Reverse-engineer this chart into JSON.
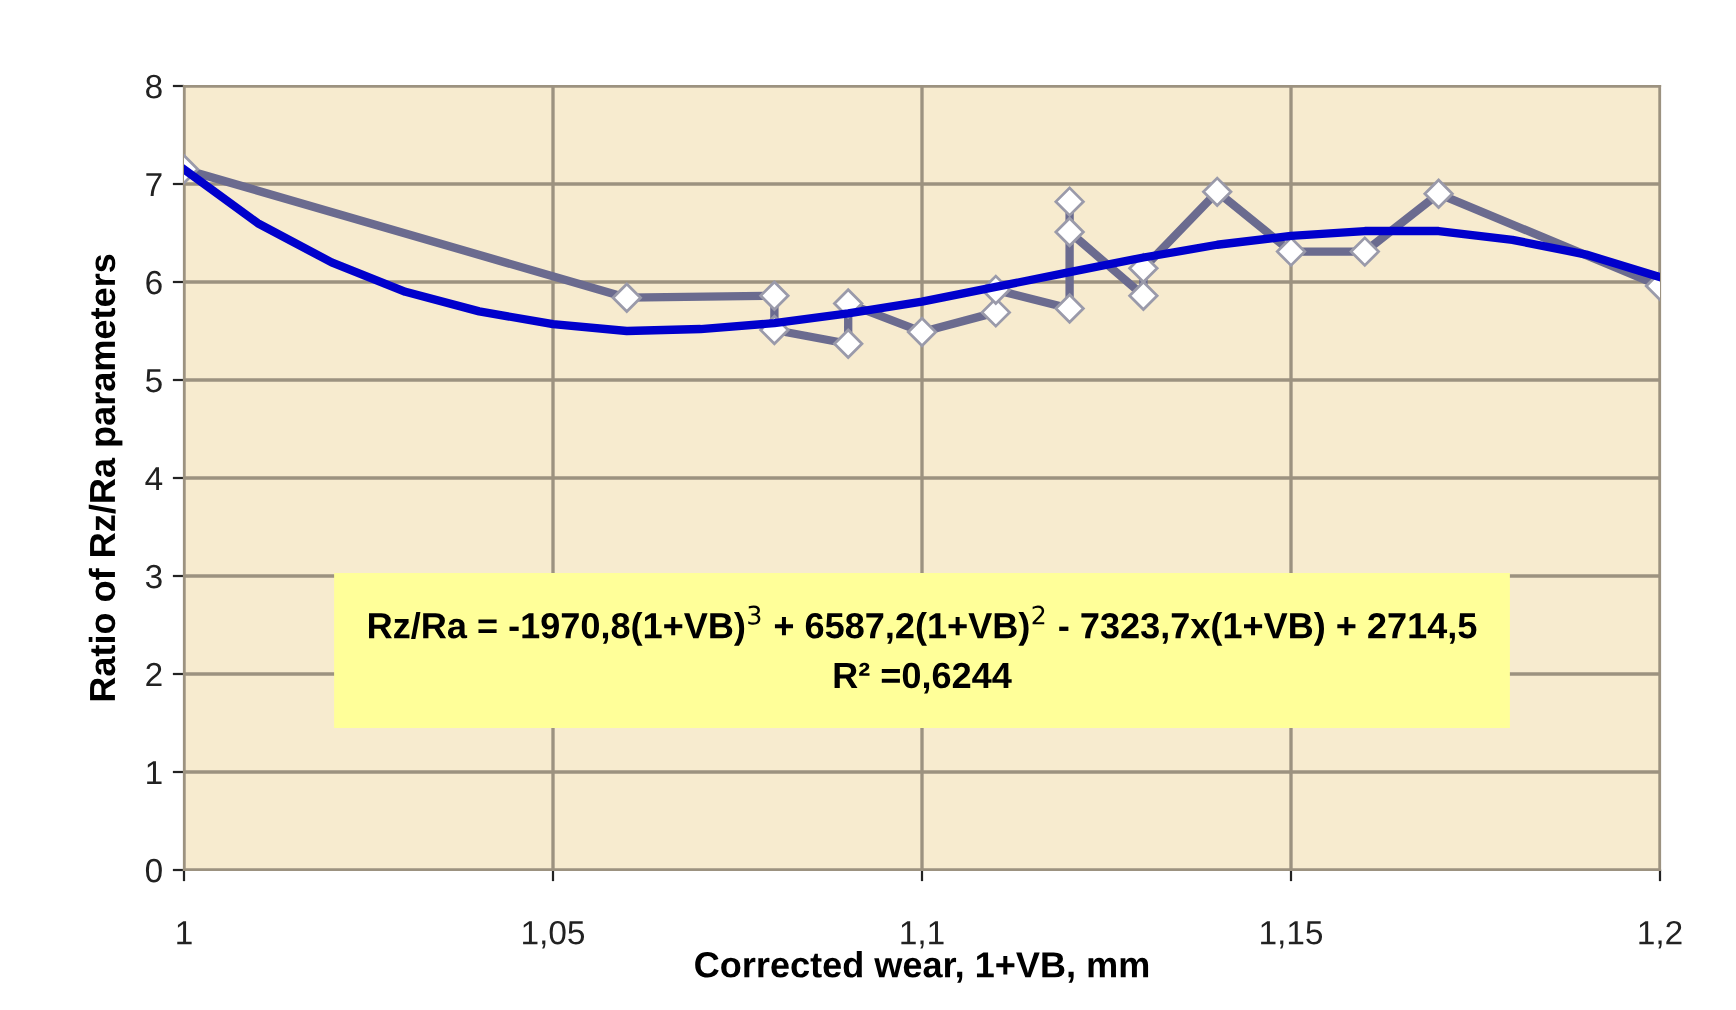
{
  "chart_data": {
    "type": "line",
    "xlabel": "Corrected wear, 1+VB, mm",
    "ylabel": "Ratio of Rz/Ra parameters",
    "series": [
      {
        "color": "#6b6b8f",
        "marker": "diamond",
        "x": [
          1,
          1.06,
          1.08,
          1.08,
          1.09,
          1.09,
          1.1,
          1.11,
          1.11,
          1.12,
          1.12,
          1.12,
          1.13,
          1.13,
          1.14,
          1.15,
          1.16,
          1.17,
          1.2
        ],
        "values": [
          7.15,
          5.84,
          5.86,
          5.51,
          5.37,
          5.78,
          5.49,
          5.69,
          5.92,
          5.73,
          6.82,
          6.51,
          5.86,
          6.14,
          6.92,
          6.31,
          6.31,
          6.9,
          5.96
        ]
      },
      {
        "color": "#0000cc",
        "marker": "none",
        "x": [
          1,
          1.01,
          1.02,
          1.03,
          1.04,
          1.05,
          1.06,
          1.07,
          1.08,
          1.09,
          1.1,
          1.11,
          1.12,
          1.13,
          1.14,
          1.15,
          1.16,
          1.17,
          1.18,
          1.19,
          1.2
        ],
        "values": [
          7.15,
          6.6,
          6.2,
          5.9,
          5.7,
          5.57,
          5.5,
          5.52,
          5.58,
          5.68,
          5.8,
          5.95,
          6.1,
          6.25,
          6.38,
          6.47,
          6.52,
          6.52,
          6.43,
          6.28,
          6.05
        ]
      }
    ],
    "xlim": [
      1,
      1.2
    ],
    "xticks": [
      1,
      {
        "value": 1.05,
        "label": "1,05"
      },
      {
        "value": 1.1,
        "label": "1,1"
      },
      {
        "value": 1.15,
        "label": "1,15"
      },
      {
        "value": 1.2,
        "label": "1,2"
      }
    ],
    "ylim": [
      0,
      8
    ],
    "yticks": [
      0,
      1,
      2,
      3,
      4,
      5,
      6,
      7,
      8
    ],
    "grid": true,
    "legend": false,
    "annotations": [
      "Rz/Ra = -1970,8(1+VB)$^{3}$ + 6587,2(1+VB)$^{2}$ - 7323,7x(1+VB) + 2714,5\nR² =0,6244"
    ]
  }
}
